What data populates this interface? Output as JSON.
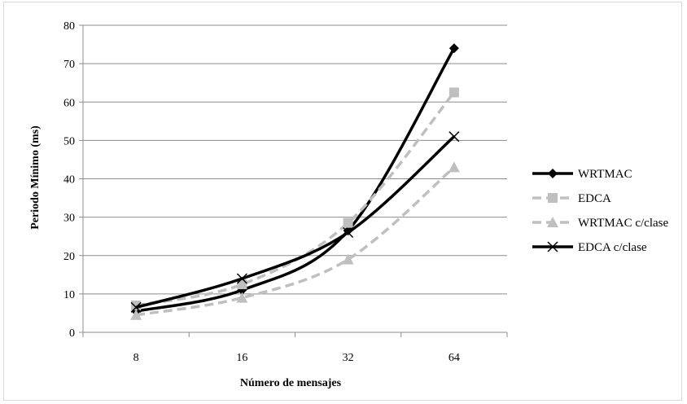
{
  "chart_data": {
    "type": "line",
    "categories": [
      "8",
      "16",
      "32",
      "64"
    ],
    "series": [
      {
        "name": "WRTMAC",
        "values": [
          5.5,
          11,
          26.5,
          74
        ],
        "color": "#000000",
        "dash": false,
        "marker": "diamond"
      },
      {
        "name": "EDCA",
        "values": [
          7,
          12.5,
          28.5,
          62.5
        ],
        "color": "#bfbfbf",
        "dash": true,
        "marker": "square"
      },
      {
        "name": "WRTMAC c/clase",
        "values": [
          4.5,
          9,
          19,
          43
        ],
        "color": "#bfbfbf",
        "dash": true,
        "marker": "triangle"
      },
      {
        "name": "EDCA c/clase",
        "values": [
          6.5,
          14,
          26,
          51
        ],
        "color": "#000000",
        "dash": false,
        "marker": "x"
      }
    ],
    "xlabel": "Número de mensajes",
    "ylabel": "Periodo Mínimo (ms)",
    "ylim": [
      0,
      80
    ],
    "yticks": [
      "0",
      "10",
      "20",
      "30",
      "40",
      "50",
      "60",
      "70",
      "80"
    ],
    "grid": true,
    "legend_position": "right"
  }
}
